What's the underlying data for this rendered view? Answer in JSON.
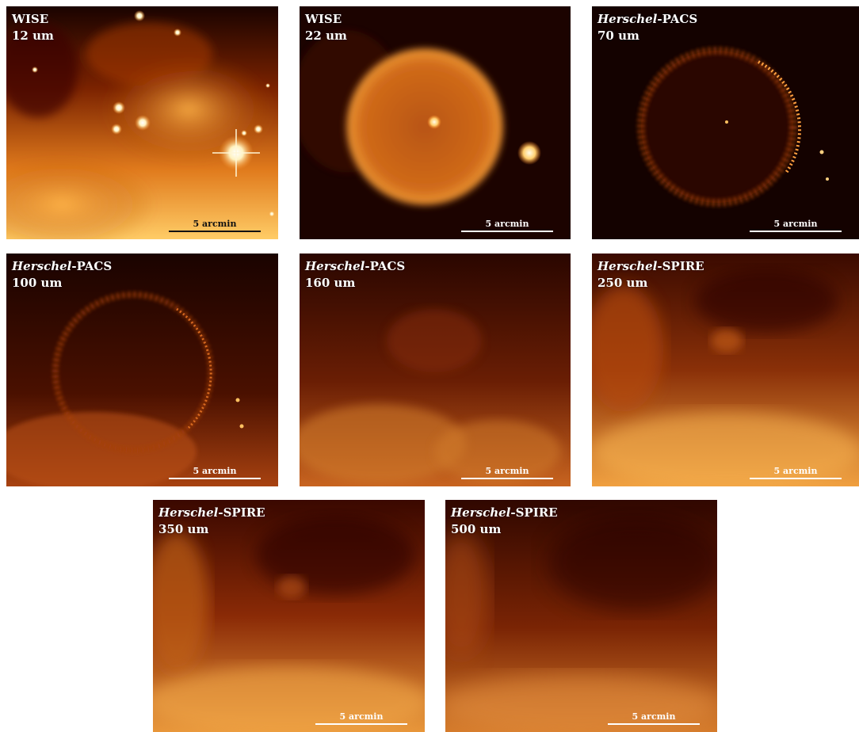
{
  "panels": [
    {
      "id": "wise12",
      "instrument": "WISE",
      "instrument_italic": false,
      "band": "12 um",
      "scalebar": "5 arcmin"
    },
    {
      "id": "wise22",
      "instrument": "WISE",
      "instrument_italic": false,
      "band": "22 um",
      "scalebar": "5 arcmin"
    },
    {
      "id": "pacs70",
      "instrument": "Herschel",
      "instrument_italic": true,
      "suffix": "-PACS",
      "band": "70 um",
      "scalebar": "5 arcmin"
    },
    {
      "id": "pacs100",
      "instrument": "Herschel",
      "instrument_italic": true,
      "suffix": "-PACS",
      "band": "100 um",
      "scalebar": "5 arcmin"
    },
    {
      "id": "pacs160",
      "instrument": "Herschel",
      "instrument_italic": true,
      "suffix": "-PACS",
      "band": "160 um",
      "scalebar": "5 arcmin"
    },
    {
      "id": "spire250",
      "instrument": "Herschel",
      "instrument_italic": true,
      "suffix": "-SPIRE",
      "band": "250 um",
      "scalebar": "5 arcmin"
    },
    {
      "id": "spire350",
      "instrument": "Herschel",
      "instrument_italic": true,
      "suffix": "-SPIRE",
      "band": "350 um",
      "scalebar": "5 arcmin"
    },
    {
      "id": "spire500",
      "instrument": "Herschel",
      "instrument_italic": true,
      "suffix": "-SPIRE",
      "band": "500 um",
      "scalebar": "5 arcmin"
    }
  ]
}
